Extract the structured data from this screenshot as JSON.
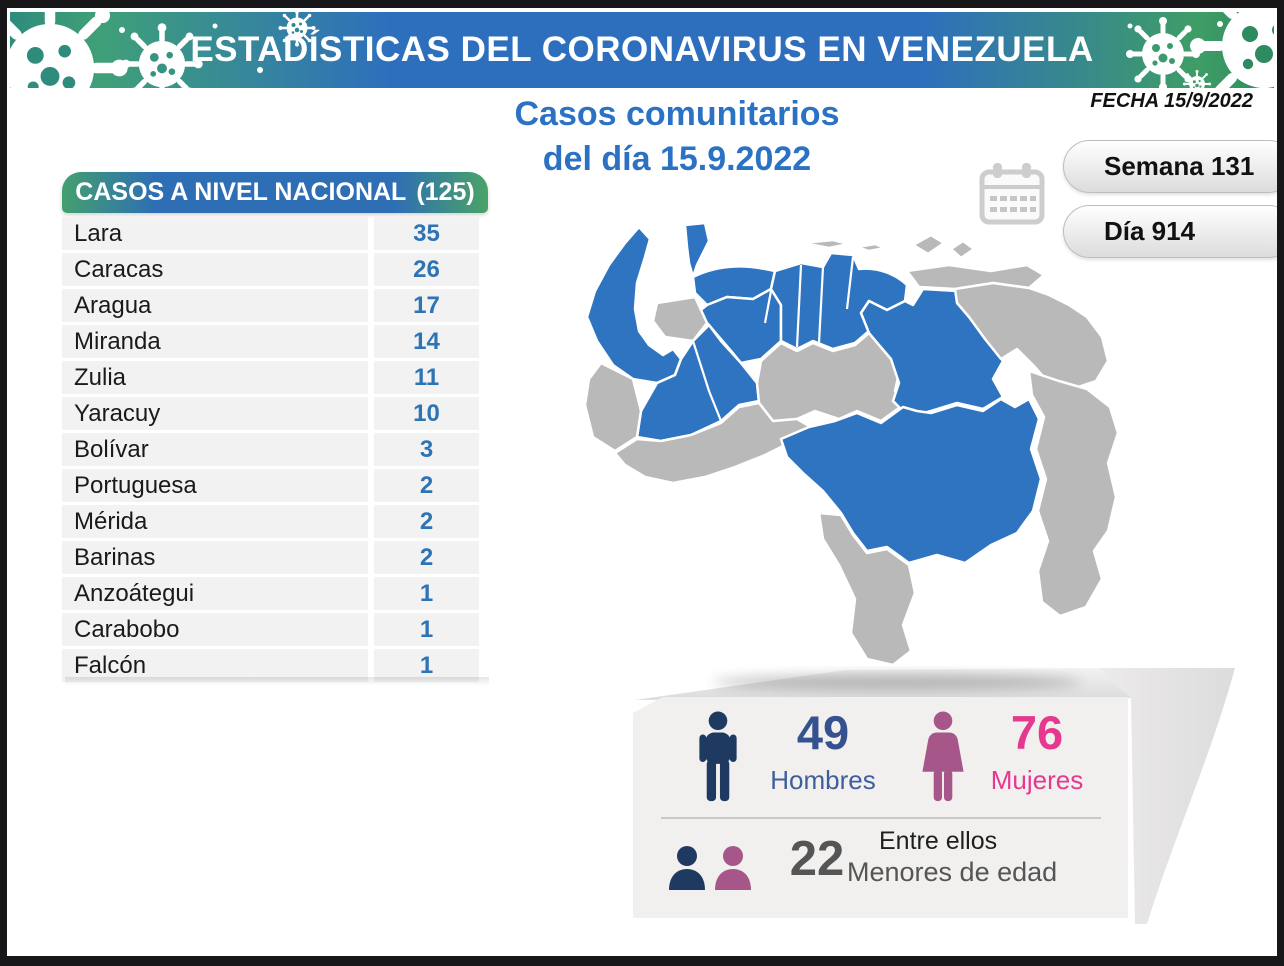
{
  "header": {
    "title": "ESTADÍSTICAS DEL CORONAVIRUS EN VENEZUELA"
  },
  "meta": {
    "date_label": "FECHA 15/9/2022"
  },
  "main_title": {
    "line1": "Casos comunitarios",
    "line2": "del día 15.9.2022"
  },
  "badges": {
    "week": "Semana 131",
    "day": "Día 914"
  },
  "table": {
    "title": "CASOS A NIVEL NACIONAL",
    "total": "(125)",
    "rows": [
      {
        "state": "Lara",
        "cases": "35"
      },
      {
        "state": "Caracas",
        "cases": "26"
      },
      {
        "state": "Aragua",
        "cases": "17"
      },
      {
        "state": "Miranda",
        "cases": "14"
      },
      {
        "state": "Zulia",
        "cases": "11"
      },
      {
        "state": "Yaracuy",
        "cases": "10"
      },
      {
        "state": "Bolívar",
        "cases": "3"
      },
      {
        "state": "Portuguesa",
        "cases": "2"
      },
      {
        "state": "Mérida",
        "cases": "2"
      },
      {
        "state": "Barinas",
        "cases": "2"
      },
      {
        "state": "Anzoátegui",
        "cases": "1"
      },
      {
        "state": "Carabobo",
        "cases": "1"
      },
      {
        "state": "Falcón",
        "cases": "1"
      }
    ]
  },
  "map": {
    "highlight_color": "#2F74C0",
    "base_color": "#B9B9B9",
    "highlighted_states": [
      "Lara",
      "Caracas",
      "Aragua",
      "Miranda",
      "Zulia",
      "Yaracuy",
      "Bolívar",
      "Portuguesa",
      "Mérida",
      "Barinas",
      "Anzoátegui",
      "Carabobo",
      "Falcón"
    ]
  },
  "demographics": {
    "men": {
      "value": "49",
      "label": "Hombres"
    },
    "women": {
      "value": "76",
      "label": "Mujeres"
    },
    "minors": {
      "value": "22",
      "label_top": "Entre ellos",
      "label_bottom": "Menores de edad"
    }
  },
  "chart_data": {
    "type": "table",
    "title": "CASOS A NIVEL NACIONAL (125)",
    "categories": [
      "Lara",
      "Caracas",
      "Aragua",
      "Miranda",
      "Zulia",
      "Yaracuy",
      "Bolívar",
      "Portuguesa",
      "Mérida",
      "Barinas",
      "Anzoátegui",
      "Carabobo",
      "Falcón"
    ],
    "values": [
      35,
      26,
      17,
      14,
      11,
      10,
      3,
      2,
      2,
      2,
      1,
      1,
      1
    ],
    "total": 125,
    "annotations": {
      "fecha": "15/9/2022",
      "semana": 131,
      "dia": 914,
      "hombres": 49,
      "mujeres": 76,
      "menores_de_edad": 22
    },
    "colors": {
      "map_highlight": "#2F74C0",
      "map_base": "#B9B9B9",
      "men": "#35518E",
      "women": "#E5398F",
      "title_blue": "#2B72C4"
    }
  }
}
